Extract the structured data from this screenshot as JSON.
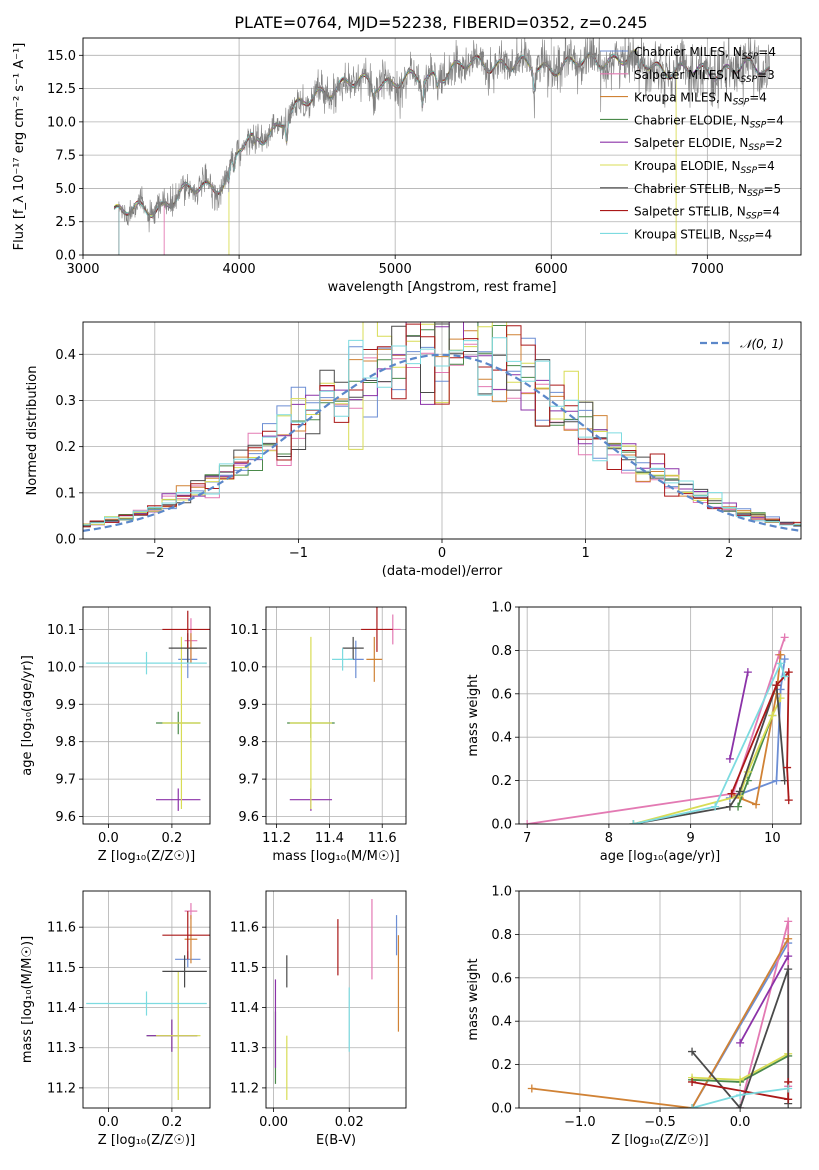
{
  "figure_title": "PLATE=0764, MJD=52238, FIBERID=0352, z=0.245",
  "colors": {
    "Chabrier MILES": "#6c8ed4",
    "Salpeter MILES": "#e37ab3",
    "Kroupa MILES": "#d08235",
    "Chabrier ELODIE": "#4a8a4a",
    "Salpeter ELODIE": "#8b32a8",
    "Kroupa ELODIE": "#d8dc55",
    "Chabrier STELIB": "#4a4a4a",
    "Salpeter STELIB": "#aa1818",
    "Kroupa STELIB": "#7ddbe0",
    "gaussian": "#5b87c9"
  },
  "chart_data": [
    {
      "id": "spectrum",
      "type": "line",
      "xlabel": "wavelength [Angstrom, rest frame]",
      "ylabel": "Flux [f_λ 10⁻¹⁷ erg cm⁻² s⁻¹ A⁻¹]",
      "xlim": [
        3000,
        7600
      ],
      "ylim": [
        0,
        16.3
      ],
      "xticks": [
        "3000",
        "4000",
        "5000",
        "6000",
        "7000"
      ],
      "yticks": [
        "0.0",
        "2.5",
        "5.0",
        "7.5",
        "10.0",
        "12.5",
        "15.0"
      ],
      "continuum": {
        "x": [
          3200,
          3500,
          3700,
          3900,
          4000,
          4300,
          4500,
          5000,
          5500,
          6000,
          6500,
          7000,
          7400
        ],
        "y": [
          3.5,
          3.8,
          4.6,
          5.2,
          8.0,
          10.5,
          12.0,
          13.3,
          14.0,
          14.5,
          14.4,
          14.0,
          13.6
        ]
      },
      "legend": [
        {
          "label": "Chabrier MILES, N",
          "sub": "SSP",
          "tail": "=4"
        },
        {
          "label": "Salpeter MILES, N",
          "sub": "SSP",
          "tail": "=3"
        },
        {
          "label": "Kroupa MILES, N",
          "sub": "SSP",
          "tail": "=4"
        },
        {
          "label": "Chabrier ELODIE, N",
          "sub": "SSP",
          "tail": "=4"
        },
        {
          "label": "Salpeter ELODIE, N",
          "sub": "SSP",
          "tail": "=2"
        },
        {
          "label": "Kroupa ELODIE, N",
          "sub": "SSP",
          "tail": "=4"
        },
        {
          "label": "Chabrier STELIB, N",
          "sub": "SSP",
          "tail": "=5"
        },
        {
          "label": "Salpeter STELIB, N",
          "sub": "SSP",
          "tail": "=4"
        },
        {
          "label": "Kroupa STELIB, N",
          "sub": "SSP",
          "tail": "=4"
        }
      ]
    },
    {
      "id": "residuals",
      "type": "line",
      "xlabel": "(data-model)/error",
      "ylabel": "Normed distribution",
      "xlim": [
        -2.5,
        2.5
      ],
      "ylim": [
        0,
        0.47
      ],
      "xticks": [
        -2,
        -1,
        0,
        1,
        2
      ],
      "yticks": [
        0.0,
        0.1,
        0.2,
        0.3,
        0.4
      ],
      "gaussian_label": "𝒩(0, 1)",
      "bin_width": 0.1,
      "note": "step histograms of each of the 9 fits"
    },
    {
      "id": "age_vs_Z",
      "type": "scatter",
      "xlabel": "Z [log₁₀(Z/Z☉)]",
      "ylabel": "age  [log₁₀(age/yr)]",
      "xlim": [
        -0.08,
        0.32
      ],
      "ylim": [
        9.58,
        10.16
      ],
      "xticks": [
        0.0,
        0.2
      ],
      "yticks": [
        9.6,
        9.7,
        9.8,
        9.9,
        10.0,
        10.1
      ],
      "points": [
        {
          "fit": "Chabrier MILES",
          "x": 0.25,
          "xerr": 0.03,
          "y": 10.02,
          "yerr": 0.05
        },
        {
          "fit": "Salpeter MILES",
          "x": 0.26,
          "xerr": 0.02,
          "y": 10.07,
          "yerr": 0.06
        },
        {
          "fit": "Kroupa MILES",
          "x": 0.26,
          "xerr": 0.02,
          "y": 10.05,
          "yerr": 0.04
        },
        {
          "fit": "Chabrier ELODIE",
          "x": 0.22,
          "xerr": 0.07,
          "y": 9.85,
          "yerr": 0.03
        },
        {
          "fit": "Salpeter ELODIE",
          "x": 0.22,
          "xerr": 0.07,
          "y": 9.645,
          "yerr": 0.03
        },
        {
          "fit": "Kroupa ELODIE",
          "x": 0.23,
          "xerr": 0.06,
          "y": 9.85,
          "yerr": 0.23
        },
        {
          "fit": "Chabrier STELIB",
          "x": 0.25,
          "xerr": 0.06,
          "y": 10.05,
          "yerr": 0.04
        },
        {
          "fit": "Salpeter STELIB",
          "x": 0.25,
          "xerr": 0.08,
          "y": 10.1,
          "yerr": 0.05
        },
        {
          "fit": "Kroupa STELIB",
          "x": 0.12,
          "xerr": 0.19,
          "y": 10.01,
          "yerr": 0.03
        }
      ]
    },
    {
      "id": "age_vs_mass",
      "type": "scatter",
      "xlabel": "mass [log₁₀(M/M☉)]",
      "ylabel": "",
      "xlim": [
        11.16,
        11.69
      ],
      "ylim": [
        9.58,
        10.16
      ],
      "xticks": [
        11.2,
        11.4,
        11.6
      ],
      "yticks": [
        9.6,
        9.7,
        9.8,
        9.9,
        10.0,
        10.1
      ],
      "points": [
        {
          "fit": "Chabrier MILES",
          "x": 11.5,
          "xerr": 0.03,
          "y": 10.02,
          "yerr": 0.05
        },
        {
          "fit": "Salpeter MILES",
          "x": 11.64,
          "xerr": 0.03,
          "y": 10.1,
          "yerr": 0.04
        },
        {
          "fit": "Kroupa MILES",
          "x": 11.57,
          "xerr": 0.03,
          "y": 10.02,
          "yerr": 0.06
        },
        {
          "fit": "Chabrier ELODIE",
          "x": 11.33,
          "xerr": 0.09,
          "y": 9.85,
          "yerr": 0.04
        },
        {
          "fit": "Salpeter ELODIE",
          "x": 11.33,
          "xerr": 0.08,
          "y": 9.645,
          "yerr": 0.03
        },
        {
          "fit": "Kroupa ELODIE",
          "x": 11.33,
          "xerr": 0.08,
          "y": 9.85,
          "yerr": 0.23
        },
        {
          "fit": "Chabrier STELIB",
          "x": 11.49,
          "xerr": 0.04,
          "y": 10.05,
          "yerr": 0.03
        },
        {
          "fit": "Salpeter STELIB",
          "x": 11.58,
          "xerr": 0.06,
          "y": 10.1,
          "yerr": 0.06
        },
        {
          "fit": "Kroupa STELIB",
          "x": 11.45,
          "xerr": 0.04,
          "y": 10.02,
          "yerr": 0.03
        }
      ]
    },
    {
      "id": "mass_vs_Z",
      "type": "scatter",
      "xlabel": "Z [log₁₀(Z/Z☉)]",
      "ylabel": "mass [log₁₀(M/M☉)]",
      "xlim": [
        -0.08,
        0.32
      ],
      "ylim": [
        11.15,
        11.69
      ],
      "xticks": [
        0.0,
        0.2
      ],
      "yticks": [
        11.2,
        11.3,
        11.4,
        11.5,
        11.6
      ],
      "points": [
        {
          "fit": "Chabrier MILES",
          "x": 0.25,
          "xerr": 0.04,
          "y": 11.52,
          "yerr": 0.02
        },
        {
          "fit": "Salpeter MILES",
          "x": 0.26,
          "xerr": 0.02,
          "y": 11.64,
          "yerr": 0.02
        },
        {
          "fit": "Kroupa MILES",
          "x": 0.26,
          "xerr": 0.02,
          "y": 11.57,
          "yerr": 0.06
        },
        {
          "fit": "Chabrier ELODIE",
          "x": 0.2,
          "xerr": 0.08,
          "y": 11.33,
          "yerr": 0.04
        },
        {
          "fit": "Salpeter ELODIE",
          "x": 0.2,
          "xerr": 0.08,
          "y": 11.33,
          "yerr": 0.04
        },
        {
          "fit": "Kroupa ELODIE",
          "x": 0.22,
          "xerr": 0.07,
          "y": 11.33,
          "yerr": 0.16
        },
        {
          "fit": "Chabrier STELIB",
          "x": 0.24,
          "xerr": 0.07,
          "y": 11.49,
          "yerr": 0.04
        },
        {
          "fit": "Salpeter STELIB",
          "x": 0.25,
          "xerr": 0.08,
          "y": 11.58,
          "yerr": 0.06
        },
        {
          "fit": "Kroupa STELIB",
          "x": 0.12,
          "xerr": 0.19,
          "y": 11.41,
          "yerr": 0.03
        }
      ]
    },
    {
      "id": "mass_vs_EBV",
      "type": "scatter",
      "xlabel": "E(B-V)",
      "ylabel": "",
      "xlim": [
        -0.002,
        0.035
      ],
      "ylim": [
        11.15,
        11.69
      ],
      "xticks": [
        0.0,
        0.02
      ],
      "yticks": [
        11.2,
        11.3,
        11.4,
        11.5,
        11.6
      ],
      "points": [
        {
          "fit": "Chabrier MILES",
          "x": 0.0325,
          "y": 11.58,
          "yerr": 0.05
        },
        {
          "fit": "Salpeter MILES",
          "x": 0.026,
          "y": 11.57,
          "yerr": 0.1
        },
        {
          "fit": "Kroupa MILES",
          "x": 0.033,
          "y": 11.46,
          "yerr": 0.12
        },
        {
          "fit": "Chabrier ELODIE",
          "x": 0.0005,
          "y": 11.3,
          "yerr": 0.09
        },
        {
          "fit": "Salpeter ELODIE",
          "x": 0.0005,
          "y": 11.36,
          "yerr": 0.11
        },
        {
          "fit": "Kroupa ELODIE",
          "x": 0.0035,
          "y": 11.25,
          "yerr": 0.08
        },
        {
          "fit": "Chabrier STELIB",
          "x": 0.0035,
          "y": 11.49,
          "yerr": 0.04
        },
        {
          "fit": "Salpeter STELIB",
          "x": 0.017,
          "y": 11.55,
          "yerr": 0.07
        },
        {
          "fit": "Kroupa STELIB",
          "x": 0.02,
          "y": 11.37,
          "yerr": 0.08
        }
      ]
    },
    {
      "id": "weight_vs_age",
      "type": "line",
      "xlabel": "age  [log₁₀(age/yr)]",
      "ylabel": "mass weight",
      "xlim": [
        6.9,
        10.35
      ],
      "ylim": [
        0,
        1.0
      ],
      "xticks": [
        7,
        8,
        9,
        10
      ],
      "yticks": [
        0.0,
        0.2,
        0.4,
        0.6,
        0.8,
        1.0
      ],
      "series": [
        {
          "name": "Chabrier MILES",
          "x": [
            9.48,
            10.05,
            10.1,
            10.15
          ],
          "y": [
            0.12,
            0.2,
            0.62,
            0.76
          ]
        },
        {
          "name": "Salpeter MILES",
          "x": [
            7.0,
            9.52,
            10.08,
            10.15
          ],
          "y": [
            0.0,
            0.14,
            0.78,
            0.86
          ]
        },
        {
          "name": "Kroupa MILES",
          "x": [
            9.5,
            9.6,
            9.8,
            10.05,
            10.1
          ],
          "y": [
            0.14,
            0.12,
            0.09,
            0.6,
            0.78
          ]
        },
        {
          "name": "Chabrier ELODIE",
          "x": [
            9.58,
            9.7,
            10.0
          ],
          "y": [
            0.08,
            0.2,
            0.5
          ]
        },
        {
          "name": "Salpeter ELODIE",
          "x": [
            9.48,
            9.7
          ],
          "y": [
            0.3,
            0.7
          ]
        },
        {
          "name": "Kroupa ELODIE",
          "x": [
            8.3,
            9.6,
            9.7,
            10.0,
            10.1
          ],
          "y": [
            0.0,
            0.13,
            0.24,
            0.5,
            0.58
          ]
        },
        {
          "name": "Chabrier STELIB",
          "x": [
            8.3,
            9.48,
            9.6,
            10.05,
            10.15
          ],
          "y": [
            0.0,
            0.08,
            0.15,
            0.64,
            0.2
          ]
        },
        {
          "name": "Salpeter STELIB",
          "x": [
            9.5,
            10.05,
            10.2,
            10.18,
            10.2
          ],
          "y": [
            0.14,
            0.64,
            0.7,
            0.26,
            0.11
          ]
        },
        {
          "name": "Kroupa STELIB",
          "x": [
            8.3,
            9.3,
            10.1,
            10.15
          ],
          "y": [
            0.0,
            0.08,
            0.74,
            0.68
          ]
        }
      ]
    },
    {
      "id": "weight_vs_Z",
      "type": "line",
      "xlabel": "Z [log₁₀(Z/Z☉)]",
      "ylabel": "mass weight",
      "xlim": [
        -1.38,
        0.38
      ],
      "ylim": [
        0,
        1.0
      ],
      "xticks": [
        -1.0,
        -0.5,
        0.0
      ],
      "yticks": [
        0.0,
        0.2,
        0.4,
        0.6,
        0.8,
        1.0
      ],
      "series": [
        {
          "name": "Chabrier MILES",
          "x": [
            -0.3,
            0.3
          ],
          "y": [
            0.0,
            0.76
          ]
        },
        {
          "name": "Salpeter MILES",
          "x": [
            0.0,
            0.3,
            0.3
          ],
          "y": [
            0.0,
            0.86,
            0.1
          ]
        },
        {
          "name": "Kroupa MILES",
          "x": [
            -1.3,
            -0.3,
            0.3
          ],
          "y": [
            0.09,
            0.0,
            0.78
          ]
        },
        {
          "name": "Chabrier ELODIE",
          "x": [
            -0.3,
            0.0,
            0.3
          ],
          "y": [
            0.13,
            0.12,
            0.24
          ]
        },
        {
          "name": "Salpeter ELODIE",
          "x": [
            0.0,
            0.3
          ],
          "y": [
            0.3,
            0.7
          ]
        },
        {
          "name": "Kroupa ELODIE",
          "x": [
            -0.3,
            0.0,
            0.3
          ],
          "y": [
            0.14,
            0.13,
            0.25
          ]
        },
        {
          "name": "Chabrier STELIB",
          "x": [
            -0.3,
            0.0,
            0.3,
            0.3
          ],
          "y": [
            0.26,
            0.0,
            0.64,
            0.02
          ]
        },
        {
          "name": "Salpeter STELIB",
          "x": [
            -0.3,
            0.3,
            0.3
          ],
          "y": [
            0.12,
            0.04,
            0.12
          ]
        },
        {
          "name": "Kroupa STELIB",
          "x": [
            -0.3,
            0.0,
            0.3
          ],
          "y": [
            0.0,
            0.06,
            0.09
          ]
        }
      ]
    }
  ]
}
